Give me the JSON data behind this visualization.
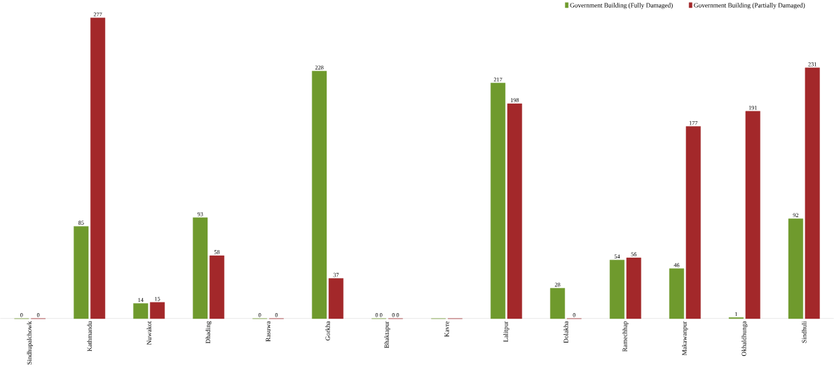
{
  "chart_data": {
    "type": "bar",
    "categories": [
      "Sindhupalchowk",
      "Kathmandu",
      "Nuwakot",
      "Dhading",
      "Rasuwa",
      "Gorkha",
      "Bhaktapur",
      "Kavre",
      "Lalitpur",
      "Dolakha",
      "Ramechhap",
      "Makawanpur",
      "Okhaldhunga",
      "Sindhuli"
    ],
    "series": [
      {
        "name": "Government Building (Fully Damaged)",
        "color": "#6f9a2d",
        "values": [
          0,
          85,
          14,
          93,
          0,
          228,
          0,
          0,
          217,
          28,
          54,
          46,
          1,
          92
        ],
        "value_labels": [
          "0",
          "85",
          "14",
          "93",
          "0",
          "228",
          "0 0",
          null,
          "217",
          "28",
          "54",
          "46",
          "1",
          "92"
        ]
      },
      {
        "name": "Government Building (Partially Damaged)",
        "color": "#a3282a",
        "values": [
          0,
          277,
          15,
          58,
          0,
          37,
          0,
          0,
          198,
          0,
          56,
          177,
          191,
          231
        ],
        "value_labels": [
          "0",
          "277",
          "15",
          "58",
          "0",
          "37",
          "0 0",
          null,
          "198",
          "0",
          "56",
          "177",
          "191",
          "231"
        ]
      }
    ],
    "legend": "top right"
  }
}
